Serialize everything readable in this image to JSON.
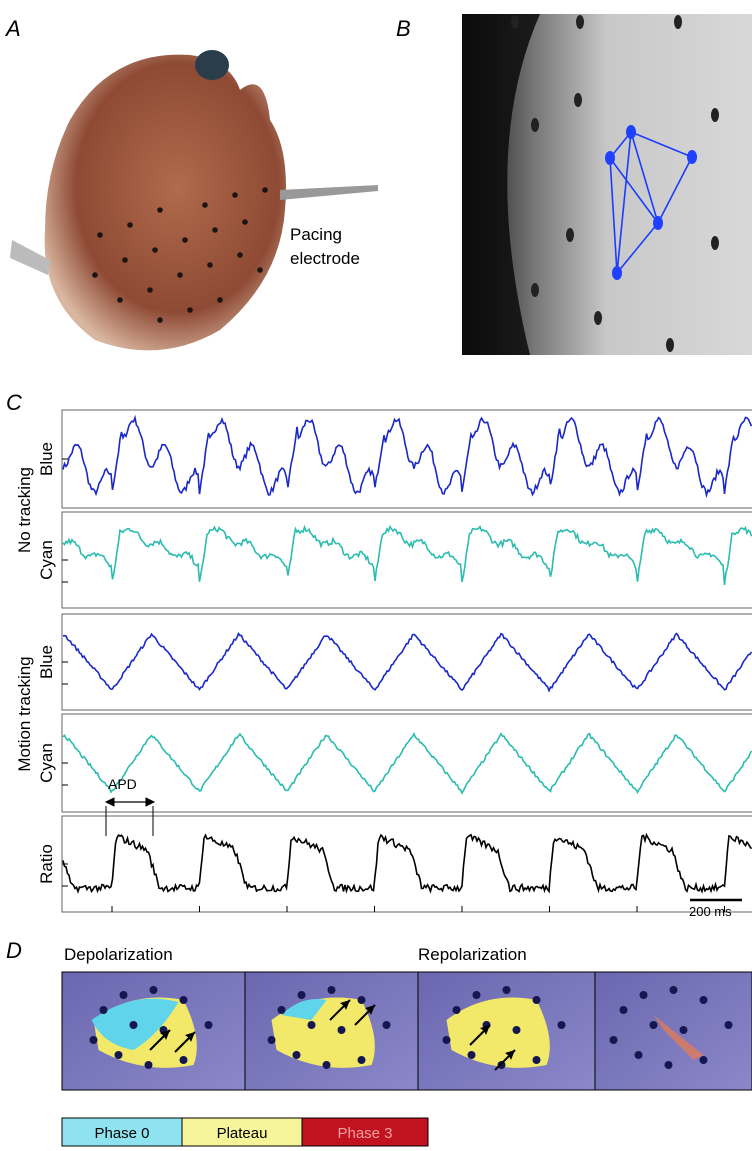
{
  "panels": {
    "A": {
      "label": "A",
      "annotation": [
        "Pacing",
        "electrode"
      ]
    },
    "B": {
      "label": "B"
    },
    "C": {
      "label": "C",
      "groups": [
        "No tracking",
        "Motion tracking"
      ],
      "traces": [
        "Blue",
        "Cyan",
        "Blue",
        "Cyan",
        "Ratio"
      ],
      "apd": "APD",
      "scale_bar": "200 ms"
    },
    "D": {
      "label": "D",
      "headings": [
        "Depolarization",
        "Repolarization"
      ],
      "legend": [
        "Phase 0",
        "Plateau",
        "Phase 3"
      ]
    }
  }
}
